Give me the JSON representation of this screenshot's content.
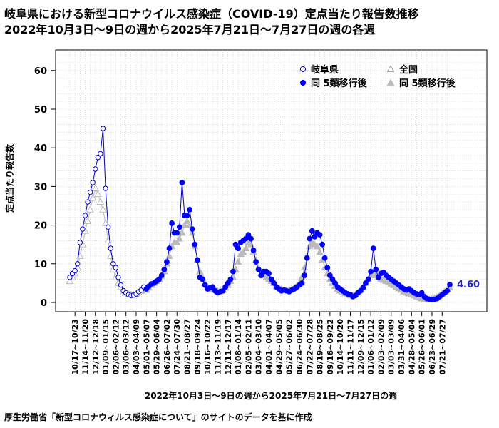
{
  "header": {
    "title": "岐阜県における新型コロナウイルス感染症（COVID-19）定点当たり報告数推移",
    "subtitle": "2022年10月3日〜9日の週から2025年7月21日〜7月27日の週の各週"
  },
  "source": "厚生労働省「新型コロナウィルス感染症について」のサイトのデータを基に作成",
  "chart_data": {
    "type": "line",
    "title": "岐阜県における新型コロナウイルス感染症（COVID-19）定点当たり報告数推移",
    "xlabel": "2022年10月3日〜9日の週から2025年7月21日〜7月27日の週",
    "ylabel": "定点当たり報告数",
    "ylim": [
      0,
      65
    ],
    "yticks": [
      0,
      10,
      20,
      30,
      40,
      50,
      60
    ],
    "grid": true,
    "legend_position": "top-right",
    "last_value_label": "4.60",
    "x_tick_labels": [
      "10/17~10/23",
      "11/14~11/20",
      "12/12~12/18",
      "01/09~01/15",
      "02/06~02/12",
      "03/06~03/12",
      "04/03~04/09",
      "05/01~05/07",
      "05/29~06/04",
      "06/26~07/02",
      "07/24~07/30",
      "08/21~08/27",
      "09/18~09/24",
      "10/16~10/22",
      "11/13~11/19",
      "12/11~12/17",
      "01/08~01/14",
      "02/05~02/11",
      "03/04~03/10",
      "04/01~04/07",
      "04/29~05/05",
      "05/27~06/02",
      "06/24~06/30",
      "07/22~07/28",
      "08/19~08/25",
      "09/16~09/22",
      "10/14~10/20",
      "11/11~11/17",
      "12/09~12/15",
      "01/06~01/12",
      "02/03~02/09",
      "03/03~03/09",
      "03/31~04/06",
      "04/28~05/04",
      "05/26~06/01",
      "06/23~06/29",
      "07/21~07/27"
    ],
    "legend": [
      "岐阜県",
      "全国",
      "同 5類移行後",
      "同 5類移行後"
    ],
    "series": [
      {
        "name": "岐阜県",
        "marker": "open-circle",
        "color": "#0000cc",
        "values": [
          6.5,
          7.5,
          8.2,
          10.0,
          15.5,
          19.0,
          22.5,
          26.0,
          28.5,
          31.0,
          34.5,
          37.5,
          38.5,
          45.0,
          29.5,
          19.5,
          14.0,
          10.0,
          9.0,
          6.5,
          4.5,
          3.0,
          2.5,
          2.0,
          1.8,
          1.9,
          2.2,
          2.8,
          3.2,
          4.0
        ]
      },
      {
        "name": "岐阜県 5類移行後",
        "marker": "filled-circle",
        "color": "#0000ff",
        "values": [
          3.5,
          4.2,
          4.8,
          5.0,
          5.5,
          6.0,
          7.0,
          8.5,
          10.5,
          14.0,
          20.5,
          18.0,
          18.0,
          19.5,
          31.0,
          22.5,
          22.5,
          24.0,
          19.0,
          15.0,
          11.0,
          6.5,
          6.0,
          4.5,
          3.5,
          3.8,
          4.0,
          3.0,
          2.5,
          2.8,
          3.0,
          4.0,
          5.0,
          6.0,
          8.0,
          15.0,
          14.0,
          15.5,
          16.0,
          16.5,
          17.5,
          16.5,
          13.5,
          10.5,
          8.5,
          7.0,
          8.0,
          8.0,
          7.5,
          6.0,
          5.0,
          4.0,
          3.5,
          3.0,
          3.2,
          3.0,
          2.8,
          3.2,
          3.5,
          4.0,
          4.5,
          5.0,
          7.0,
          11.5,
          16.5,
          18.5,
          17.0,
          18.0,
          17.5,
          15.0,
          11.5,
          9.0,
          7.0,
          6.0,
          5.0,
          4.0,
          3.5,
          3.0,
          2.5,
          2.2,
          2.0,
          1.5,
          1.8,
          2.5,
          3.0,
          3.8,
          5.0,
          6.0,
          8.0,
          14.0,
          8.5,
          6.5,
          7.5,
          7.8,
          7.0,
          6.5,
          6.0,
          5.5,
          5.0,
          4.5,
          4.0,
          3.5,
          3.2,
          3.5,
          3.0,
          2.5,
          2.2,
          2.0,
          2.5,
          1.5,
          1.0,
          0.8,
          0.7,
          0.8,
          1.0,
          1.5,
          2.0,
          2.5,
          3.0,
          4.6
        ]
      },
      {
        "name": "全国",
        "marker": "open-triangle",
        "color": "#bbbbbb",
        "values": [
          5.5,
          6.5,
          7.5,
          9.0,
          12.0,
          15.0,
          18.5,
          21.0,
          24.0,
          27.0,
          29.5,
          28.0,
          26.0,
          24.0,
          20.5,
          16.0,
          12.0,
          8.5,
          6.5,
          5.0,
          4.0,
          3.0,
          2.5,
          2.2,
          2.0,
          2.0,
          2.2,
          2.6,
          3.0,
          3.5
        ]
      },
      {
        "name": "全国 5類移行後",
        "marker": "filled-triangle",
        "color": "#bbbbbb",
        "values": [
          3.2,
          3.8,
          4.5,
          5.0,
          5.5,
          6.0,
          6.8,
          8.0,
          10.0,
          12.0,
          14.5,
          15.5,
          15.5,
          16.5,
          18.0,
          20.0,
          21.0,
          20.0,
          18.0,
          14.5,
          11.0,
          8.0,
          6.5,
          5.0,
          4.0,
          3.5,
          3.5,
          3.2,
          3.0,
          3.0,
          3.2,
          3.8,
          4.5,
          5.5,
          6.5,
          8.5,
          10.5,
          12.5,
          13.0,
          14.0,
          15.5,
          15.0,
          13.0,
          11.0,
          9.0,
          7.5,
          7.0,
          6.5,
          6.0,
          5.5,
          5.0,
          4.2,
          3.8,
          3.5,
          3.3,
          3.2,
          3.2,
          3.5,
          3.8,
          4.2,
          5.0,
          6.5,
          9.0,
          12.0,
          14.5,
          15.5,
          15.0,
          14.5,
          13.0,
          11.0,
          9.0,
          7.5,
          6.0,
          5.0,
          4.2,
          3.5,
          3.0,
          2.6,
          2.3,
          2.0,
          1.8,
          1.8,
          2.0,
          2.5,
          3.2,
          4.0,
          5.0,
          6.0,
          7.0,
          7.5,
          7.0,
          6.5,
          6.0,
          5.8,
          5.5,
          5.2,
          4.8,
          4.4,
          4.0,
          3.6,
          3.2,
          2.8,
          2.5,
          2.3,
          2.0,
          1.8,
          1.5,
          1.3,
          1.0,
          0.9,
          0.8,
          0.8,
          0.9,
          1.1,
          1.4,
          1.8,
          2.3,
          2.8,
          3.3,
          3.8
        ]
      }
    ]
  }
}
